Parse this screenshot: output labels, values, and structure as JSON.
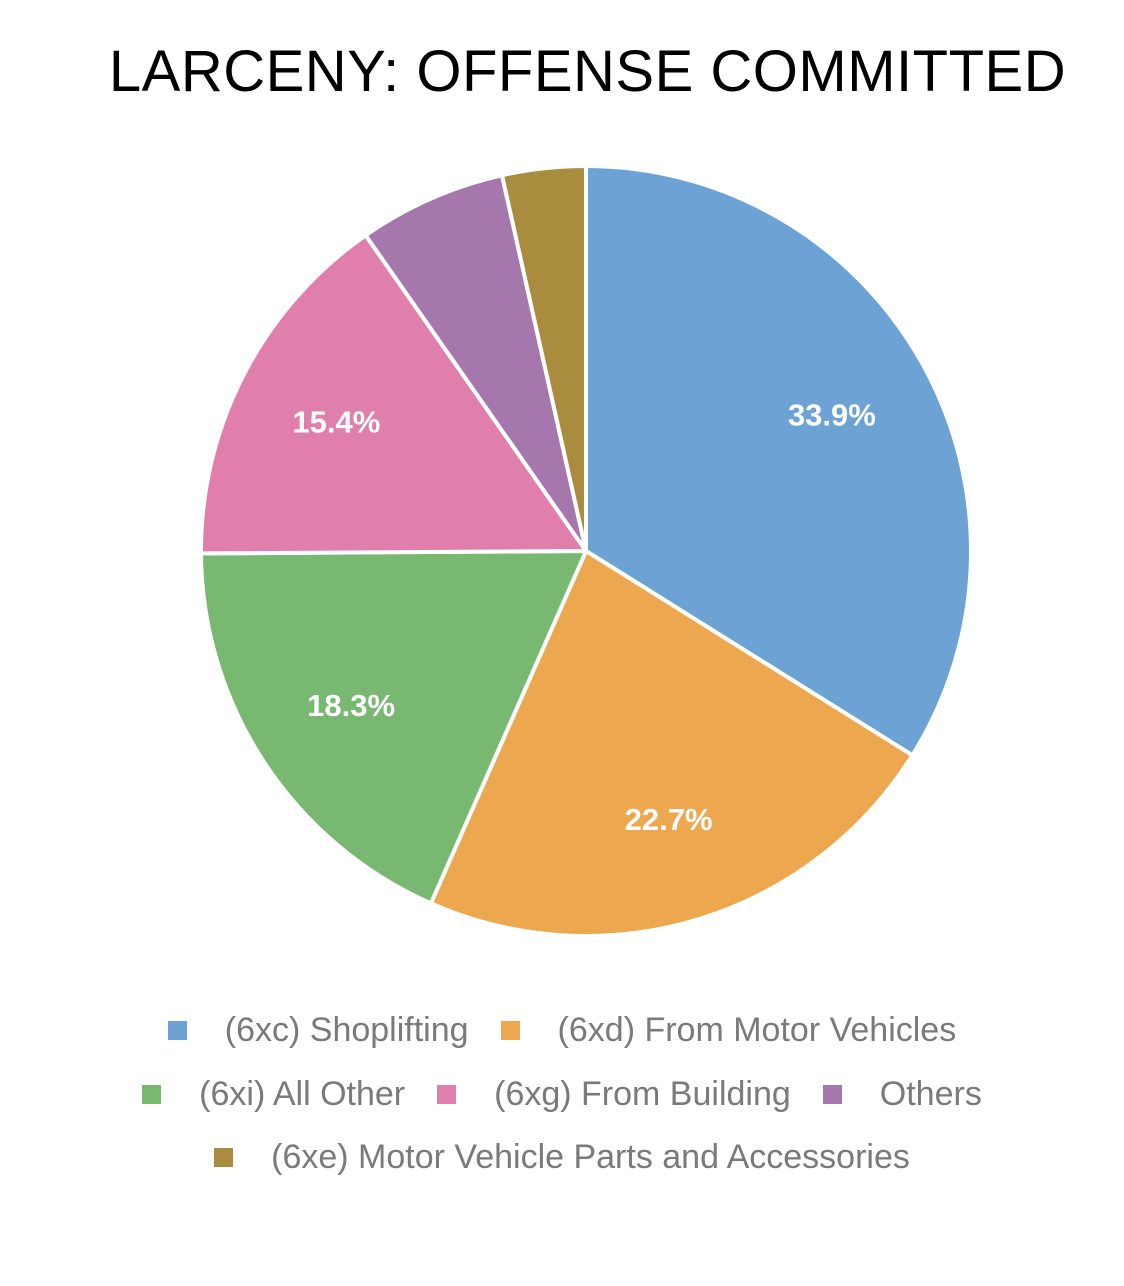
{
  "chart_data": {
    "type": "pie",
    "title": "LARCENY: OFFENSE COMMITTED",
    "slices": [
      {
        "name": "(6xc) Shoplifting",
        "value": 33.9,
        "label": "33.9%",
        "color": "#6da2d4"
      },
      {
        "name": "(6xd) From Motor Vehicles",
        "value": 22.7,
        "label": "22.7%",
        "color": "#eca74f"
      },
      {
        "name": "(6xi) All Other",
        "value": 18.3,
        "label": "18.3%",
        "color": "#79b871"
      },
      {
        "name": "(6xg) From Building",
        "value": 15.4,
        "label": "15.4%",
        "color": "#e07fab"
      },
      {
        "name": "Others",
        "value": 6.2,
        "label": "",
        "color": "#a677ad"
      },
      {
        "name": "(6xe) Motor Vehicle Parts and Accessories",
        "value": 3.5,
        "label": "",
        "color": "#a98c3d"
      }
    ],
    "legend_position": "bottom"
  }
}
